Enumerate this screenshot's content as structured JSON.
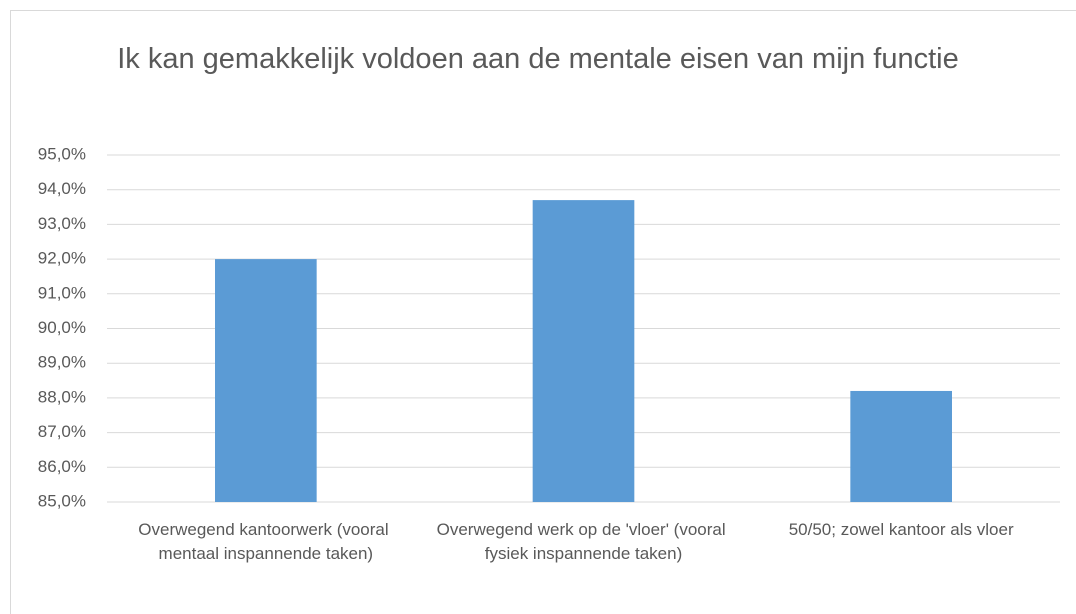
{
  "chart_data": {
    "type": "bar",
    "title": "Ik kan gemakkelijk voldoen aan de mentale eisen van mijn functie",
    "categories": [
      "Overwegend kantoorwerk (vooral mentaal inspannende taken)",
      "Overwegend werk op de 'vloer' (vooral fysiek inspannende taken)",
      "50/50; zowel kantoor als vloer"
    ],
    "values": [
      92.0,
      93.7,
      88.2
    ],
    "color": "#5b9bd5",
    "ylim": [
      85,
      95
    ],
    "yticks": [
      {
        "value": 85,
        "label": "85,0%"
      },
      {
        "value": 86,
        "label": "86,0%"
      },
      {
        "value": 87,
        "label": "87,0%"
      },
      {
        "value": 88,
        "label": "88,0%"
      },
      {
        "value": 89,
        "label": "89,0%"
      },
      {
        "value": 90,
        "label": "90,0%"
      },
      {
        "value": 91,
        "label": "91,0%"
      },
      {
        "value": 92,
        "label": "92,0%"
      },
      {
        "value": 93,
        "label": "93,0%"
      },
      {
        "value": 94,
        "label": "94,0%"
      },
      {
        "value": 95,
        "label": "95,0%"
      }
    ],
    "grid": true
  }
}
